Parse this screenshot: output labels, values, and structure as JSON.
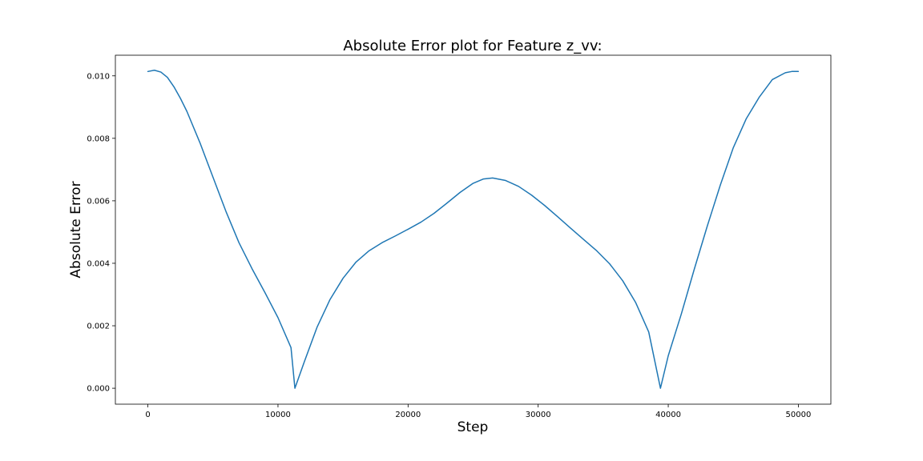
{
  "chart_data": {
    "type": "line",
    "title": "Absolute Error plot for Feature z_vv:",
    "xlabel": "Step",
    "ylabel": "Absolute Error",
    "xlim": [
      -2500,
      52500
    ],
    "ylim": [
      -0.00051,
      0.01066
    ],
    "xticks": [
      0,
      10000,
      20000,
      30000,
      40000,
      50000
    ],
    "xtick_labels": [
      "0",
      "10000",
      "20000",
      "30000",
      "40000",
      "50000"
    ],
    "yticks": [
      0.0,
      0.002,
      0.004,
      0.006,
      0.008,
      0.01
    ],
    "ytick_labels": [
      "0.000",
      "0.002",
      "0.004",
      "0.006",
      "0.008",
      "0.010"
    ],
    "grid": false,
    "color": "#1f77b4",
    "series": [
      {
        "x": [
          0,
          500,
          1000,
          1500,
          2000,
          2500,
          3000,
          4000,
          5000,
          6000,
          7000,
          8000,
          9000,
          10000,
          11000,
          11300,
          12000,
          13000,
          14000,
          15000,
          16000,
          17000,
          18000,
          19000,
          20000,
          21000,
          22000,
          23000,
          24000,
          25000,
          25800,
          26500,
          27500,
          28500,
          29500,
          30500,
          31500,
          32500,
          33500,
          34500,
          35500,
          36500,
          37500,
          38500,
          39400,
          40000,
          41000,
          42000,
          43000,
          44000,
          45000,
          46000,
          47000,
          48000,
          49000,
          49500,
          50000
        ],
        "y": [
          0.01014,
          0.01018,
          0.01012,
          0.00995,
          0.00965,
          0.00928,
          0.00886,
          0.00786,
          0.00676,
          0.00566,
          0.00466,
          0.00383,
          0.00306,
          0.00226,
          0.0013,
          0.0,
          0.00082,
          0.00195,
          0.00284,
          0.00352,
          0.00404,
          0.0044,
          0.00466,
          0.00487,
          0.00509,
          0.00532,
          0.0056,
          0.00593,
          0.00627,
          0.00656,
          0.0067,
          0.00673,
          0.00665,
          0.00646,
          0.00618,
          0.00585,
          0.00549,
          0.00512,
          0.00476,
          0.0044,
          0.00398,
          0.00344,
          0.00274,
          0.0018,
          0.0,
          0.00104,
          0.00237,
          0.00381,
          0.00519,
          0.0065,
          0.0077,
          0.00863,
          0.00932,
          0.00988,
          0.0101,
          0.01014,
          0.01014
        ]
      }
    ]
  }
}
